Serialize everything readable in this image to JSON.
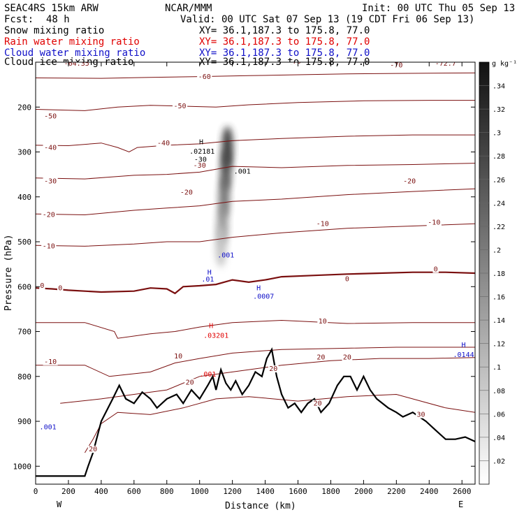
{
  "header": {
    "model": "SEAC4RS 15km ARW",
    "center": "NCAR/MMM",
    "init": "Init: 00 UTC Thu 05 Sep 13",
    "fcst_label": "Fcst:",
    "fcst_value": "48 h",
    "valid": "Valid: 00 UTC Sat 07 Sep 13 (19 CDT Fri 06 Sep 13)"
  },
  "legend": [
    {
      "label": "Snow mixing ratio",
      "xy": "XY=  36.1,187.3 to 175.8, 77.0",
      "color": "#000000"
    },
    {
      "label": "Rain water mixing ratio",
      "xy": "XY=  36.1,187.3 to 175.8, 77.0",
      "color": "#e00000"
    },
    {
      "label": "Cloud water mixing ratio",
      "xy": "XY=  36.1,187.3 to 175.8, 77.0",
      "color": "#1010c8"
    },
    {
      "label": "Cloud ice mixing ratio",
      "xy": "XY=  36.1,187.3 to 175.8, 77.0",
      "color": "#000000"
    }
  ],
  "colors": {
    "temperature": "#7a0f0f",
    "terrain": "#000000",
    "rain": "#e00000",
    "cloud_water": "#1010c8",
    "ice": "#000000"
  },
  "chart_data": {
    "type": "cross-section",
    "ylabel": "Pressure (hPa)",
    "xlabel": "Distance (km)",
    "xlim": [
      0,
      2680
    ],
    "ylim": [
      1040,
      100
    ],
    "x_ticks": [
      0,
      200,
      400,
      600,
      800,
      1000,
      1200,
      1400,
      1600,
      1800,
      2000,
      2200,
      2400,
      2600
    ],
    "y_ticks": [
      200,
      300,
      400,
      500,
      600,
      700,
      800,
      900,
      1000
    ],
    "x_end_labels": {
      "left": "W",
      "right": "E"
    },
    "colorbar": {
      "unit": "g kg⁻¹",
      "ticks": [
        ".02",
        ".04",
        ".06",
        ".08",
        ".1",
        ".12",
        ".14",
        ".16",
        ".18",
        ".2",
        ".22",
        ".24",
        ".26",
        ".28",
        ".3",
        ".32",
        ".34"
      ]
    },
    "temperature_contour_labels": [
      {
        "text": "-64.35",
        "x": 250,
        "p": 108
      },
      {
        "text": "-70",
        "x": 1580,
        "p": 103
      },
      {
        "text": "-70",
        "x": 2200,
        "p": 112
      },
      {
        "text": "-72.7",
        "x": 2500,
        "p": 108
      },
      {
        "text": "-60",
        "x": 1030,
        "p": 137
      },
      {
        "text": "-50",
        "x": 90,
        "p": 225
      },
      {
        "text": "-50",
        "x": 880,
        "p": 203
      },
      {
        "text": "-40",
        "x": 90,
        "p": 295
      },
      {
        "text": "-40",
        "x": 780,
        "p": 285
      },
      {
        "text": "-30",
        "x": 90,
        "p": 370
      },
      {
        "text": "-30",
        "x": 1000,
        "p": 335
      },
      {
        "text": "-20",
        "x": 80,
        "p": 445
      },
      {
        "text": "-20",
        "x": 920,
        "p": 395
      },
      {
        "text": "-20",
        "x": 2280,
        "p": 370
      },
      {
        "text": "-10",
        "x": 80,
        "p": 515
      },
      {
        "text": "-10",
        "x": 1750,
        "p": 465
      },
      {
        "text": "-10",
        "x": 2430,
        "p": 462
      },
      {
        "text": "0",
        "x": 40,
        "p": 603
      },
      {
        "text": "0",
        "x": 150,
        "p": 608
      },
      {
        "text": "0",
        "x": 1900,
        "p": 588
      },
      {
        "text": "0",
        "x": 2440,
        "p": 566
      },
      {
        "text": "10",
        "x": 1750,
        "p": 682
      },
      {
        "text": "10",
        "x": 870,
        "p": 760
      },
      {
        "text": "-10",
        "x": 90,
        "p": 772
      },
      {
        "text": "20",
        "x": 1740,
        "p": 762
      },
      {
        "text": "20",
        "x": 1900,
        "p": 762
      },
      {
        "text": "20",
        "x": 940,
        "p": 818
      },
      {
        "text": "20",
        "x": 1450,
        "p": 788
      },
      {
        "text": "20",
        "x": 350,
        "p": 967
      },
      {
        "text": "20",
        "x": 1720,
        "p": 865
      },
      {
        "text": "30",
        "x": 2350,
        "p": 890
      }
    ],
    "other_labels": [
      {
        "text": "H",
        "x": 1010,
        "p": 283,
        "color": "#000000"
      },
      {
        "text": ".02181",
        "x": 1015,
        "p": 304,
        "color": "#000000"
      },
      {
        "text": "-30",
        "x": 1005,
        "p": 322,
        "color": "#000000"
      },
      {
        "text": ".001",
        "x": 1260,
        "p": 348,
        "color": "#000000"
      },
      {
        "text": ".001",
        "x": 1160,
        "p": 535,
        "color": "#1010c8"
      },
      {
        "text": "H",
        "x": 1060,
        "p": 573,
        "color": "#1010c8"
      },
      {
        "text": ".01",
        "x": 1050,
        "p": 589,
        "color": "#1010c8"
      },
      {
        "text": "H",
        "x": 1360,
        "p": 608,
        "color": "#1010c8"
      },
      {
        "text": ".0007",
        "x": 1390,
        "p": 627,
        "color": "#1010c8"
      },
      {
        "text": "H",
        "x": 1070,
        "p": 692,
        "color": "#e00000"
      },
      {
        "text": ".03201",
        "x": 1100,
        "p": 714,
        "color": "#e00000"
      },
      {
        "text": ".001",
        "x": 1050,
        "p": 800,
        "color": "#e00000"
      },
      {
        "text": "H",
        "x": 2610,
        "p": 735,
        "color": "#1010c8"
      },
      {
        "text": ".0144",
        "x": 2610,
        "p": 757,
        "color": "#1010c8"
      },
      {
        "text": ".001",
        "x": 75,
        "p": 918,
        "color": "#1010c8"
      }
    ],
    "terrain_km_hpa": [
      [
        0,
        1022
      ],
      [
        300,
        1022
      ],
      [
        320,
        1000
      ],
      [
        350,
        970
      ],
      [
        400,
        900
      ],
      [
        470,
        850
      ],
      [
        510,
        820
      ],
      [
        550,
        850
      ],
      [
        600,
        860
      ],
      [
        650,
        835
      ],
      [
        700,
        850
      ],
      [
        740,
        870
      ],
      [
        800,
        850
      ],
      [
        860,
        840
      ],
      [
        900,
        860
      ],
      [
        950,
        830
      ],
      [
        1000,
        850
      ],
      [
        1050,
        820
      ],
      [
        1080,
        800
      ],
      [
        1100,
        830
      ],
      [
        1130,
        785
      ],
      [
        1160,
        815
      ],
      [
        1190,
        830
      ],
      [
        1220,
        810
      ],
      [
        1260,
        840
      ],
      [
        1300,
        820
      ],
      [
        1340,
        790
      ],
      [
        1380,
        800
      ],
      [
        1410,
        760
      ],
      [
        1440,
        740
      ],
      [
        1470,
        800
      ],
      [
        1500,
        840
      ],
      [
        1540,
        870
      ],
      [
        1580,
        860
      ],
      [
        1620,
        880
      ],
      [
        1660,
        860
      ],
      [
        1700,
        850
      ],
      [
        1740,
        880
      ],
      [
        1790,
        860
      ],
      [
        1840,
        820
      ],
      [
        1880,
        800
      ],
      [
        1920,
        800
      ],
      [
        1960,
        830
      ],
      [
        2000,
        800
      ],
      [
        2040,
        830
      ],
      [
        2080,
        850
      ],
      [
        2150,
        870
      ],
      [
        2200,
        880
      ],
      [
        2240,
        890
      ],
      [
        2300,
        880
      ],
      [
        2380,
        900
      ],
      [
        2440,
        920
      ],
      [
        2500,
        940
      ],
      [
        2560,
        940
      ],
      [
        2620,
        935
      ],
      [
        2680,
        945
      ]
    ],
    "freezing_level_km_hpa": [
      [
        0,
        603
      ],
      [
        100,
        605
      ],
      [
        200,
        608
      ],
      [
        400,
        612
      ],
      [
        600,
        610
      ],
      [
        700,
        603
      ],
      [
        800,
        605
      ],
      [
        850,
        615
      ],
      [
        900,
        600
      ],
      [
        1000,
        598
      ],
      [
        1100,
        595
      ],
      [
        1200,
        585
      ],
      [
        1300,
        590
      ],
      [
        1400,
        585
      ],
      [
        1500,
        578
      ],
      [
        1700,
        575
      ],
      [
        1900,
        572
      ],
      [
        2100,
        570
      ],
      [
        2300,
        568
      ],
      [
        2500,
        568
      ],
      [
        2680,
        570
      ]
    ],
    "temperature_contours": [
      {
        "t": -60,
        "pts": [
          [
            0,
            135
          ],
          [
            400,
            136
          ],
          [
            700,
            134
          ],
          [
            1000,
            132
          ],
          [
            1300,
            130
          ],
          [
            1600,
            128
          ],
          [
            1900,
            126
          ],
          [
            2200,
            125
          ],
          [
            2680,
            124
          ]
        ]
      },
      {
        "t": -50,
        "pts": [
          [
            0,
            205
          ],
          [
            300,
            208
          ],
          [
            500,
            200
          ],
          [
            700,
            196
          ],
          [
            900,
            198
          ],
          [
            1100,
            200
          ],
          [
            1300,
            195
          ],
          [
            1600,
            190
          ],
          [
            2000,
            186
          ],
          [
            2400,
            185
          ],
          [
            2680,
            185
          ]
        ]
      },
      {
        "t": -40,
        "pts": [
          [
            0,
            285
          ],
          [
            200,
            286
          ],
          [
            400,
            280
          ],
          [
            500,
            290
          ],
          [
            570,
            300
          ],
          [
            620,
            290
          ],
          [
            800,
            285
          ],
          [
            1000,
            282
          ],
          [
            1200,
            275
          ],
          [
            1500,
            270
          ],
          [
            1900,
            265
          ],
          [
            2300,
            262
          ],
          [
            2680,
            262
          ]
        ]
      },
      {
        "t": -30,
        "pts": [
          [
            0,
            358
          ],
          [
            300,
            360
          ],
          [
            600,
            352
          ],
          [
            800,
            350
          ],
          [
            1000,
            345
          ],
          [
            1200,
            332
          ],
          [
            1500,
            335
          ],
          [
            1900,
            330
          ],
          [
            2300,
            328
          ],
          [
            2680,
            325
          ]
        ]
      },
      {
        "t": -20,
        "pts": [
          [
            0,
            438
          ],
          [
            300,
            440
          ],
          [
            600,
            430
          ],
          [
            800,
            425
          ],
          [
            1000,
            420
          ],
          [
            1200,
            410
          ],
          [
            1500,
            405
          ],
          [
            1900,
            395
          ],
          [
            2300,
            388
          ],
          [
            2680,
            382
          ]
        ]
      },
      {
        "t": -10,
        "pts": [
          [
            0,
            508
          ],
          [
            300,
            510
          ],
          [
            600,
            505
          ],
          [
            800,
            500
          ],
          [
            1000,
            500
          ],
          [
            1200,
            490
          ],
          [
            1500,
            480
          ],
          [
            1900,
            470
          ],
          [
            2300,
            465
          ],
          [
            2680,
            460
          ]
        ]
      },
      {
        "t": 10,
        "pts": [
          [
            0,
            680
          ],
          [
            300,
            680
          ],
          [
            480,
            700
          ],
          [
            500,
            715
          ],
          [
            700,
            705
          ],
          [
            850,
            700
          ],
          [
            1000,
            690
          ],
          [
            1200,
            680
          ],
          [
            1500,
            675
          ],
          [
            1900,
            682
          ],
          [
            2300,
            680
          ],
          [
            2680,
            680
          ]
        ]
      },
      {
        "t": 10,
        "pts": [
          [
            0,
            775
          ],
          [
            300,
            775
          ],
          [
            450,
            800
          ],
          [
            700,
            790
          ],
          [
            850,
            770
          ],
          [
            1000,
            760
          ],
          [
            1200,
            748
          ],
          [
            1500,
            740
          ],
          [
            1800,
            738
          ],
          [
            2200,
            735
          ],
          [
            2680,
            735
          ]
        ]
      },
      {
        "t": 20,
        "pts": [
          [
            150,
            860
          ],
          [
            400,
            850
          ],
          [
            600,
            840
          ],
          [
            800,
            830
          ],
          [
            1000,
            800
          ],
          [
            1200,
            790
          ],
          [
            1500,
            775
          ],
          [
            1800,
            765
          ],
          [
            2100,
            760
          ],
          [
            2400,
            760
          ],
          [
            2680,
            758
          ]
        ]
      },
      {
        "t": 20,
        "pts": [
          [
            300,
            970
          ],
          [
            350,
            940
          ],
          [
            400,
            905
          ],
          [
            500,
            880
          ],
          [
            700,
            885
          ],
          [
            900,
            870
          ],
          [
            1100,
            850
          ],
          [
            1300,
            845
          ],
          [
            1600,
            855
          ],
          [
            1900,
            845
          ],
          [
            2200,
            840
          ],
          [
            2500,
            870
          ],
          [
            2680,
            880
          ]
        ]
      }
    ],
    "snow_max": 0.34,
    "snow_plume_km_hpa": [
      [
        1170,
        290,
        0.34
      ],
      [
        1160,
        340,
        0.3
      ],
      [
        1150,
        400,
        0.24
      ],
      [
        1140,
        460,
        0.18
      ],
      [
        1130,
        510,
        0.1
      ]
    ]
  }
}
